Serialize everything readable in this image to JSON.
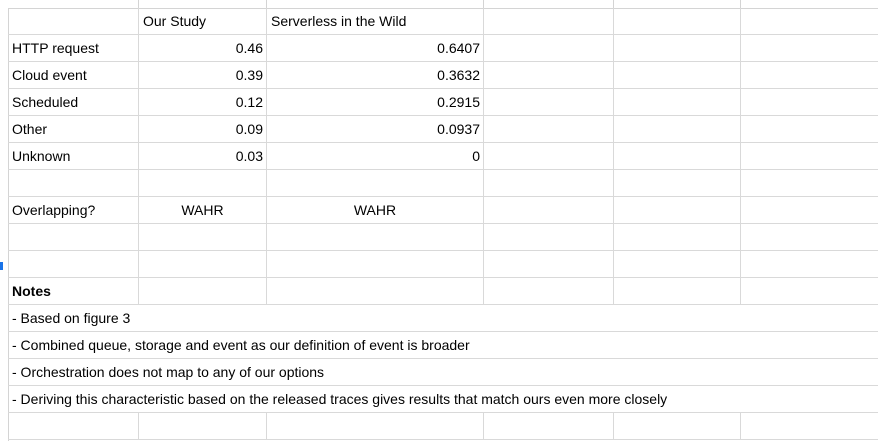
{
  "sheet": {
    "header_row": {
      "col_b": "Our Study",
      "col_c": "Serverless in the Wild"
    },
    "rows": [
      {
        "label": "HTTP request",
        "our_study": "0.46",
        "wild": "0.6407"
      },
      {
        "label": "Cloud event",
        "our_study": "0.39",
        "wild": "0.3632"
      },
      {
        "label": "Scheduled",
        "our_study": "0.12",
        "wild": "0.2915"
      },
      {
        "label": "Other",
        "our_study": "0.09",
        "wild": "0.0937"
      },
      {
        "label": "Unknown",
        "our_study": "0.03",
        "wild": "0"
      }
    ],
    "overlap_row": {
      "label": "Overlapping?",
      "our_study": "WAHR",
      "wild": "WAHR"
    },
    "notes": {
      "title": "Notes",
      "lines": [
        "- Based on figure 3",
        "- Combined queue, storage and event as our definition of event is broader",
        "- Orchestration does not map to any of our options",
        "- Deriving this characteristic based on the released traces gives results that match ours even more closely"
      ]
    }
  },
  "colors": {
    "gridline": "#d9d9d9",
    "header_border": "#d4d4d4",
    "selection_marker": "#1a73e8"
  }
}
